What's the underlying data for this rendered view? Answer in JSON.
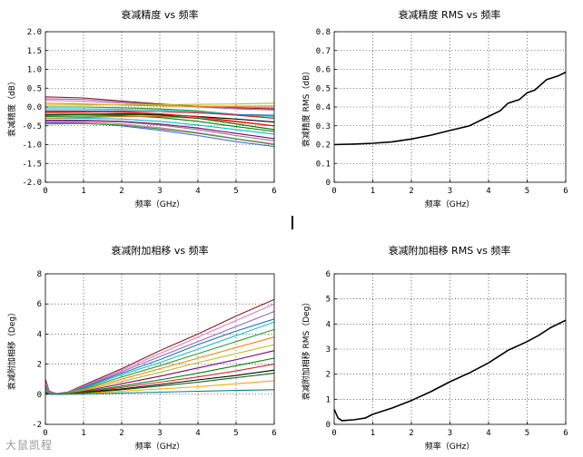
{
  "watermark": "大鼠凯程",
  "chart_data": [
    {
      "id": "atten-accuracy",
      "type": "line",
      "title": "衰减精度 vs 频率",
      "xlabel": "频率（GHz）",
      "ylabel": "衰减精度（dB）",
      "xlim": [
        0,
        6
      ],
      "ylim": [
        -2,
        2
      ],
      "xticks": [
        0,
        1,
        2,
        3,
        4,
        5,
        6
      ],
      "yticks": [
        -2.0,
        -1.5,
        -1.0,
        -0.5,
        0.0,
        0.5,
        1.0,
        1.5,
        2.0
      ],
      "ytick_labels": [
        "-2.0",
        "-1.5",
        "-1.0",
        "-0.5",
        "0.0",
        "0.5",
        "1.0",
        "1.5",
        "2.0"
      ],
      "grid": true,
      "x": [
        0,
        1,
        2,
        3,
        4,
        5,
        6
      ],
      "series": [
        {
          "name": "s1",
          "color": "#8b1a1a",
          "values": [
            0.27,
            0.24,
            0.16,
            0.08,
            0.02,
            -0.02,
            -0.05
          ]
        },
        {
          "name": "s2",
          "color": "#9467bd",
          "values": [
            0.22,
            0.2,
            0.13,
            0.06,
            0.0,
            -0.05,
            -0.08
          ]
        },
        {
          "name": "s3",
          "color": "#e377c2",
          "values": [
            0.18,
            0.15,
            0.1,
            0.05,
            0.02,
            0.0,
            -0.02
          ]
        },
        {
          "name": "s4",
          "color": "#ff7f0e",
          "values": [
            0.1,
            0.08,
            0.05,
            0.03,
            0.02,
            0.02,
            0.03
          ]
        },
        {
          "name": "s5",
          "color": "#bcbd22",
          "values": [
            0.05,
            0.05,
            0.06,
            0.06,
            0.07,
            0.08,
            0.1
          ]
        },
        {
          "name": "s6",
          "color": "#2ca02c",
          "values": [
            0.0,
            0.0,
            -0.02,
            -0.05,
            -0.1,
            -0.2,
            -0.3
          ]
        },
        {
          "name": "s7",
          "color": "#17becf",
          "values": [
            -0.05,
            -0.05,
            -0.06,
            -0.08,
            -0.12,
            -0.2,
            -0.25
          ]
        },
        {
          "name": "s8",
          "color": "#1f77b4",
          "values": [
            -0.1,
            -0.1,
            -0.1,
            -0.12,
            -0.16,
            -0.2,
            -0.22
          ]
        },
        {
          "name": "s9",
          "color": "#d62728",
          "values": [
            -0.15,
            -0.14,
            -0.12,
            -0.12,
            -0.15,
            -0.22,
            -0.3
          ]
        },
        {
          "name": "s10",
          "color": "#000000",
          "values": [
            -0.2,
            -0.19,
            -0.18,
            -0.2,
            -0.25,
            -0.32,
            -0.4
          ]
        },
        {
          "name": "s11",
          "color": "#008000",
          "values": [
            -0.25,
            -0.24,
            -0.23,
            -0.28,
            -0.38,
            -0.52,
            -0.65
          ]
        },
        {
          "name": "s12",
          "color": "#00bfbf",
          "values": [
            -0.3,
            -0.3,
            -0.32,
            -0.38,
            -0.48,
            -0.6,
            -0.72
          ]
        },
        {
          "name": "s13",
          "color": "#800080",
          "values": [
            -0.35,
            -0.35,
            -0.38,
            -0.45,
            -0.56,
            -0.7,
            -0.84
          ]
        },
        {
          "name": "s14",
          "color": "#7f7f7f",
          "values": [
            -0.38,
            -0.37,
            -0.4,
            -0.48,
            -0.6,
            -0.76,
            -0.9
          ]
        },
        {
          "name": "s15",
          "color": "#ff69b4",
          "values": [
            -0.4,
            -0.4,
            -0.45,
            -0.55,
            -0.68,
            -0.84,
            -0.98
          ]
        },
        {
          "name": "s16",
          "color": "#4169e1",
          "values": [
            -0.42,
            -0.43,
            -0.5,
            -0.62,
            -0.76,
            -0.92,
            -1.05
          ]
        },
        {
          "name": "s17",
          "color": "#2ca02c",
          "values": [
            -0.45,
            -0.44,
            -0.48,
            -0.58,
            -0.7,
            -0.85,
            -1.0
          ]
        },
        {
          "name": "s18",
          "color": "#d2691e",
          "values": [
            -0.3,
            -0.28,
            -0.25,
            -0.25,
            -0.3,
            -0.4,
            -0.5
          ]
        },
        {
          "name": "s19",
          "color": "#006400",
          "values": [
            -0.22,
            -0.2,
            -0.2,
            -0.22,
            -0.3,
            -0.45,
            -0.6
          ]
        },
        {
          "name": "s20",
          "color": "#ff0000",
          "values": [
            -0.12,
            -0.12,
            -0.14,
            -0.18,
            -0.26,
            -0.38,
            -0.5
          ]
        }
      ]
    },
    {
      "id": "atten-accuracy-rms",
      "type": "line",
      "title": "衰减精度 RMS vs 频率",
      "xlabel": "频率（GHz）",
      "ylabel": "衰减精度 RMS（dB）",
      "xlim": [
        0,
        6
      ],
      "ylim": [
        0,
        0.8
      ],
      "xticks": [
        0,
        1,
        2,
        3,
        4,
        5,
        6
      ],
      "yticks": [
        0,
        0.1,
        0.2,
        0.3,
        0.4,
        0.5,
        0.6,
        0.7,
        0.8
      ],
      "ytick_labels": [
        "0",
        "0.1",
        "0.2",
        "0.3",
        "0.4",
        "0.5",
        "0.6",
        "0.7",
        "0.8"
      ],
      "grid": true,
      "x": [
        0,
        0.5,
        1,
        1.5,
        2,
        2.5,
        3,
        3.5,
        4,
        4.3,
        4.5,
        4.8,
        5,
        5.2,
        5.5,
        5.8,
        6
      ],
      "series": [
        {
          "name": "rms",
          "color": "#000000",
          "values": [
            0.2,
            0.203,
            0.207,
            0.215,
            0.23,
            0.25,
            0.275,
            0.3,
            0.35,
            0.38,
            0.42,
            0.44,
            0.475,
            0.49,
            0.545,
            0.565,
            0.585
          ]
        }
      ]
    },
    {
      "id": "phase-shift",
      "type": "line",
      "title": "衰减附加相移 vs 频率",
      "xlabel": "频率（GHz）",
      "ylabel": "衰减附加相移（Deg）",
      "xlim": [
        0,
        6
      ],
      "ylim": [
        -2,
        8
      ],
      "xticks": [
        0,
        1,
        2,
        3,
        4,
        5,
        6
      ],
      "yticks": [
        -2,
        0,
        2,
        4,
        6,
        8
      ],
      "ytick_labels": [
        "-2",
        "0",
        "2",
        "4",
        "6",
        "8"
      ],
      "grid": true,
      "x": [
        0,
        0.1,
        0.3,
        0.6,
        1,
        2,
        3,
        4,
        5,
        6
      ],
      "series": [
        {
          "name": "p1",
          "color": "#8b1a1a",
          "values": [
            1.0,
            0.2,
            0.05,
            0.15,
            0.6,
            1.7,
            2.9,
            4.0,
            5.2,
            6.3
          ]
        },
        {
          "name": "p2",
          "color": "#e377c2",
          "values": [
            0.8,
            0.15,
            0.05,
            0.12,
            0.55,
            1.6,
            2.7,
            3.8,
            4.9,
            6.0
          ]
        },
        {
          "name": "p3",
          "color": "#9467bd",
          "values": [
            0.6,
            0.1,
            0.04,
            0.1,
            0.5,
            1.5,
            2.5,
            3.5,
            4.5,
            5.5
          ]
        },
        {
          "name": "p4",
          "color": "#1f77b4",
          "values": [
            0.5,
            0.1,
            0.03,
            0.1,
            0.45,
            1.4,
            2.3,
            3.3,
            4.2,
            5.0
          ]
        },
        {
          "name": "p5",
          "color": "#17becf",
          "values": [
            0.4,
            0.08,
            0.03,
            0.1,
            0.4,
            1.3,
            2.1,
            3.0,
            3.9,
            4.8
          ]
        },
        {
          "name": "p6",
          "color": "#2ca02c",
          "values": [
            0.3,
            0.06,
            0.02,
            0.08,
            0.35,
            1.15,
            1.9,
            2.7,
            3.5,
            4.3
          ]
        },
        {
          "name": "p7",
          "color": "#ff7f0e",
          "values": [
            0.25,
            0.05,
            0.02,
            0.07,
            0.3,
            1.0,
            1.7,
            2.4,
            3.1,
            3.8
          ]
        },
        {
          "name": "p8",
          "color": "#bcbd22",
          "values": [
            0.2,
            0.04,
            0.02,
            0.06,
            0.25,
            0.85,
            1.45,
            2.1,
            2.7,
            3.3
          ]
        },
        {
          "name": "p9",
          "color": "#800080",
          "values": [
            0.15,
            0.03,
            0.01,
            0.05,
            0.2,
            0.7,
            1.2,
            1.75,
            2.3,
            2.9
          ]
        },
        {
          "name": "p10",
          "color": "#008000",
          "values": [
            0.1,
            0.02,
            0.01,
            0.04,
            0.15,
            0.55,
            0.95,
            1.4,
            1.9,
            2.4
          ]
        },
        {
          "name": "p11",
          "color": "#d62728",
          "values": [
            0.1,
            0.02,
            0.01,
            0.03,
            0.12,
            0.45,
            0.8,
            1.15,
            1.55,
            2.0
          ]
        },
        {
          "name": "p12",
          "color": "#000000",
          "values": [
            0.05,
            0.01,
            0.0,
            0.02,
            0.1,
            0.35,
            0.65,
            0.95,
            1.25,
            1.6
          ]
        },
        {
          "name": "p13",
          "color": "#006400",
          "values": [
            0.05,
            0.01,
            0.0,
            0.02,
            0.08,
            0.3,
            0.55,
            0.8,
            1.1,
            1.4
          ]
        },
        {
          "name": "p14",
          "color": "#ffa500",
          "values": [
            0.03,
            0.0,
            0.0,
            0.01,
            0.05,
            0.2,
            0.35,
            0.5,
            0.7,
            0.9
          ]
        },
        {
          "name": "p15",
          "color": "#008080",
          "values": [
            0.02,
            0.0,
            0.0,
            0.0,
            0.02,
            0.08,
            0.14,
            0.2,
            0.25,
            0.3
          ]
        }
      ]
    },
    {
      "id": "phase-shift-rms",
      "type": "line",
      "title": "衰减附加相移 RMS vs 频率",
      "xlabel": "频率（GHz）",
      "ylabel": "衰减附加相移 RMS（Deg）",
      "xlim": [
        0,
        6
      ],
      "ylim": [
        0,
        6
      ],
      "xticks": [
        0,
        1,
        2,
        3,
        4,
        5,
        6
      ],
      "yticks": [
        0,
        1,
        2,
        3,
        4,
        5,
        6
      ],
      "ytick_labels": [
        "0",
        "1",
        "2",
        "3",
        "4",
        "5",
        "6"
      ],
      "grid": true,
      "x": [
        0,
        0.1,
        0.2,
        0.5,
        0.8,
        1,
        1.5,
        2,
        2.5,
        3,
        3.5,
        4,
        4.5,
        5,
        5.3,
        5.6,
        6
      ],
      "series": [
        {
          "name": "rms",
          "color": "#000000",
          "values": [
            0.6,
            0.25,
            0.15,
            0.18,
            0.25,
            0.4,
            0.65,
            0.95,
            1.3,
            1.7,
            2.05,
            2.45,
            2.95,
            3.3,
            3.55,
            3.85,
            4.15
          ]
        }
      ]
    }
  ]
}
